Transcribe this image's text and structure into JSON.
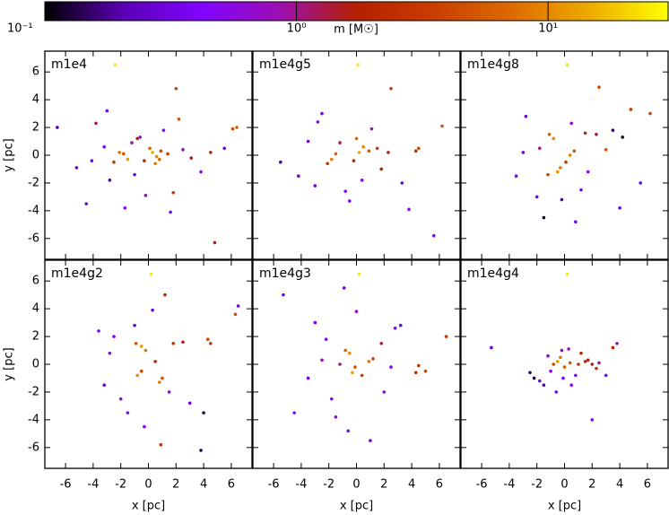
{
  "colorbar": {
    "label": "m [M☉]",
    "log_scale": true,
    "clim": [
      0.1,
      30
    ],
    "ticks": [
      {
        "value": 0.1,
        "label": "10⁻¹"
      },
      {
        "value": 1,
        "label": "10⁰"
      },
      {
        "value": 10,
        "label": "10¹"
      }
    ],
    "colormap": [
      "#000000",
      "#5a00b4",
      "#8004ff",
      "#9c0eb4",
      "#b42000",
      "#c93e00",
      "#dd6b00",
      "#eeab00",
      "#ffff00"
    ]
  },
  "chart_data": [
    {
      "type": "scatter",
      "title": "m1e4",
      "y_label": "y [pc]",
      "xlim": [
        -7.5,
        7.5
      ],
      "ylim": [
        -7.5,
        7.5
      ],
      "xticks": [
        -6,
        -4,
        -2,
        0,
        2,
        4,
        6
      ],
      "yticks": [
        -6,
        -4,
        -2,
        0,
        2,
        4,
        6
      ],
      "x": [
        -2.4,
        -2.1,
        -1.5,
        -2.5,
        -1.8,
        0.3,
        0.6,
        0.1,
        0.9,
        -0.3,
        1.4,
        2.5,
        3.1,
        -3.2,
        -4.1,
        -5.2,
        -3.8,
        4.5,
        6.4,
        6.1,
        -1.0,
        -0.6,
        1.8,
        2.2,
        -2.8,
        0.5,
        -1.2,
        3.8,
        -0.2,
        1.1,
        -4.5,
        2.0,
        0.8,
        -1.7,
        5.5,
        -6.6,
        -3.0,
        1.6,
        -0.8,
        4.8
      ],
      "values": [
        6.5,
        0.2,
        -0.3,
        -0.5,
        0.1,
        0.2,
        -0.1,
        0.5,
        0.3,
        -0.4,
        0.1,
        0.4,
        -0.2,
        0.6,
        -0.4,
        -0.9,
        2.3,
        0.2,
        2.0,
        1.9,
        -1.4,
        1.3,
        -2.7,
        2.6,
        -1.8,
        -0.6,
        0.9,
        -1.2,
        -2.9,
        1.8,
        -3.5,
        4.8,
        -0.3,
        -3.8,
        0.5,
        2.0,
        3.2,
        -4.1,
        1.2,
        -6.3
      ],
      "m": [
        25,
        8,
        12,
        3,
        5,
        15,
        10,
        6,
        4,
        2,
        3,
        0.8,
        1.5,
        0.4,
        0.3,
        0.25,
        1.2,
        2,
        6,
        4,
        0.3,
        0.6,
        3,
        5,
        0.2,
        9,
        1,
        0.5,
        0.7,
        0.4,
        0.3,
        4,
        7,
        0.5,
        0.3,
        0.2,
        0.3,
        0.4,
        2,
        1.5
      ]
    },
    {
      "type": "scatter",
      "title": "m1e4g5",
      "xlim": [
        -7.5,
        7.5
      ],
      "ylim": [
        -7.5,
        7.5
      ],
      "xticks": [
        -6,
        -4,
        -2,
        0,
        2,
        4,
        6
      ],
      "yticks": [
        -6,
        -4,
        -2,
        0,
        2,
        4,
        6
      ],
      "x": [
        0.1,
        -1.8,
        -1.5,
        -2.1,
        0.2,
        0.5,
        -0.2,
        0.9,
        1.5,
        2.3,
        4.5,
        4.3,
        6.2,
        -3.5,
        -4.2,
        -2.8,
        -0.8,
        1.1,
        0.4,
        -1.2,
        3.3,
        -5.5,
        2.5,
        -0.5,
        5.6,
        1.8,
        -2.5,
        0.0,
        3.8,
        -3.0
      ],
      "values": [
        6.5,
        -0.3,
        0.1,
        -0.6,
        0.2,
        0.6,
        -0.4,
        0.3,
        0.5,
        0.2,
        0.5,
        0.3,
        2.1,
        1.0,
        -1.5,
        2.4,
        -2.6,
        1.9,
        -1.8,
        0.9,
        -2.0,
        -0.5,
        4.8,
        -3.3,
        -5.8,
        -1.0,
        3.0,
        1.2,
        -3.9,
        -2.2
      ],
      "m": [
        25,
        9,
        6,
        3,
        14,
        10,
        2,
        5,
        3,
        1.5,
        4,
        2,
        5,
        0.3,
        0.3,
        0.6,
        0.4,
        0.8,
        0.5,
        1.2,
        0.3,
        0.2,
        3,
        0.4,
        0.6,
        2,
        0.3,
        7,
        0.5,
        0.3
      ]
    },
    {
      "type": "scatter",
      "title": "m1e4g8",
      "xlim": [
        -7.5,
        7.5
      ],
      "ylim": [
        -7.5,
        7.5
      ],
      "xticks": [
        -6,
        -4,
        -2,
        0,
        2,
        4,
        6
      ],
      "yticks": [
        -6,
        -4,
        -2,
        0,
        2,
        4,
        6
      ],
      "x": [
        0.2,
        -0.8,
        -1.1,
        -0.5,
        -0.3,
        -1.2,
        0.4,
        0.7,
        0.1,
        1.5,
        2.3,
        3.5,
        4.2,
        4.8,
        6.2,
        -2.8,
        -3.5,
        -2.0,
        1.2,
        0.8,
        -1.8,
        2.5,
        5.5,
        3.0,
        -0.2,
        1.7,
        -3.0,
        0.5,
        -1.5,
        4.0
      ],
      "values": [
        6.5,
        1.2,
        1.5,
        -1.2,
        -0.9,
        -1.4,
        0.0,
        0.3,
        -0.5,
        1.6,
        1.5,
        1.8,
        1.3,
        3.3,
        3.0,
        2.8,
        -1.5,
        -3.0,
        -2.5,
        -4.8,
        0.5,
        4.9,
        -2.0,
        0.4,
        -3.2,
        -1.2,
        0.2,
        2.3,
        -4.5,
        -3.8
      ],
      "m": [
        25,
        10,
        6,
        12,
        8,
        4,
        9,
        5,
        3,
        2,
        1.5,
        0.15,
        0.12,
        3,
        4,
        0.3,
        0.4,
        0.3,
        0.5,
        0.3,
        1,
        4,
        0.3,
        5,
        0.2,
        0.4,
        0.3,
        0.6,
        0.12,
        0.3
      ]
    },
    {
      "type": "scatter",
      "title": "m1e4g2",
      "x_label": "x [pc]",
      "y_label": "y [pc]",
      "xlim": [
        -7.5,
        7.5
      ],
      "ylim": [
        -7.5,
        7.5
      ],
      "xticks": [
        -6,
        -4,
        -2,
        0,
        2,
        4,
        6
      ],
      "yticks": [
        -6,
        -4,
        -2,
        0,
        2,
        4,
        6
      ],
      "x": [
        0.2,
        -0.5,
        -0.2,
        -0.9,
        -0.8,
        -0.5,
        0.8,
        1.0,
        0.5,
        1.8,
        2.5,
        4.3,
        4.5,
        6.3,
        6.5,
        -2.5,
        -3.2,
        -1.5,
        -2.0,
        0.3,
        -3.6,
        1.5,
        3.0,
        -0.3,
        4.0,
        1.2,
        -2.8,
        0.9,
        -1.0,
        3.8
      ],
      "values": [
        6.5,
        1.3,
        1.0,
        1.5,
        -0.8,
        -0.5,
        -1.3,
        -1.0,
        0.2,
        1.5,
        1.6,
        1.8,
        1.5,
        3.6,
        4.2,
        2.0,
        -1.5,
        -3.5,
        -2.5,
        3.9,
        2.4,
        -2.0,
        -2.8,
        -4.5,
        -3.5,
        5.0,
        0.8,
        -5.8,
        2.8,
        -6.2
      ],
      "m": [
        25,
        12,
        8,
        5,
        10,
        4,
        9,
        5,
        2,
        3,
        1.5,
        4,
        3,
        5,
        0.3,
        0.4,
        0.3,
        0.5,
        0.6,
        0.3,
        0.4,
        0.5,
        0.3,
        0.4,
        0.12,
        2,
        0.6,
        3,
        0.3,
        0.15
      ]
    },
    {
      "type": "scatter",
      "title": "m1e4g3",
      "x_label": "x [pc]",
      "xlim": [
        -7.5,
        7.5
      ],
      "ylim": [
        -7.5,
        7.5
      ],
      "xticks": [
        -6,
        -4,
        -2,
        0,
        2,
        4,
        6
      ],
      "yticks": [
        -6,
        -4,
        -2,
        0,
        2,
        4,
        6
      ],
      "x": [
        0.2,
        -0.5,
        -0.8,
        -0.3,
        -0.1,
        0.9,
        1.2,
        0.4,
        -1.2,
        1.8,
        2.5,
        4.5,
        5.0,
        6.5,
        -2.2,
        -3.5,
        -4.5,
        -5.3,
        -1.8,
        0.0,
        2.0,
        3.2,
        -2.5,
        -0.6,
        1.0,
        4.3,
        -3.0,
        2.8,
        -1.5,
        -0.9
      ],
      "values": [
        6.5,
        0.8,
        1.0,
        -0.6,
        -0.2,
        0.2,
        0.4,
        -0.8,
        0.0,
        1.5,
        -0.2,
        -0.1,
        -0.5,
        2.0,
        1.8,
        -1.0,
        -3.5,
        5.0,
        -2.5,
        3.8,
        -2.0,
        2.8,
        0.3,
        -4.8,
        -5.5,
        -0.6,
        3.0,
        2.6,
        -3.8,
        5.5
      ],
      "m": [
        25,
        10,
        6,
        12,
        5,
        8,
        4,
        3,
        1,
        1.5,
        0.5,
        3,
        4,
        3,
        0.4,
        0.3,
        0.4,
        0.3,
        0.5,
        0.6,
        0.5,
        0.3,
        0.8,
        0.4,
        0.3,
        2,
        0.3,
        0.4,
        0.5,
        0.3
      ]
    },
    {
      "type": "scatter",
      "title": "m1e4g4",
      "x_label": "x [pc]",
      "xlim": [
        -7.5,
        7.5
      ],
      "ylim": [
        -7.5,
        7.5
      ],
      "xticks": [
        -6,
        -4,
        -2,
        0,
        2,
        4,
        6
      ],
      "yticks": [
        -6,
        -4,
        -2,
        0,
        2,
        4,
        6
      ],
      "x": [
        0.2,
        -0.5,
        -0.3,
        0.0,
        -0.8,
        0.4,
        1.0,
        1.5,
        2.0,
        2.5,
        3.5,
        3.8,
        -1.8,
        -2.2,
        -1.5,
        -0.2,
        0.8,
        -1.0,
        1.2,
        -5.3,
        2.0,
        3.0,
        -2.5,
        0.5,
        -0.6,
        2.3,
        -1.2,
        0.3,
        1.7,
        -0.1
      ],
      "values": [
        6.5,
        0.2,
        0.5,
        -0.2,
        0.0,
        0.1,
        0.0,
        0.2,
        0.0,
        0.1,
        1.2,
        1.5,
        -1.2,
        -1.0,
        -1.5,
        1.0,
        -0.8,
        -0.5,
        0.8,
        1.2,
        -4.0,
        -0.8,
        -0.6,
        -1.5,
        -2.0,
        -0.3,
        0.6,
        1.1,
        0.3,
        -1.0
      ],
      "m": [
        25,
        12,
        8,
        6,
        4,
        5,
        3,
        2,
        1.5,
        1,
        2,
        0.8,
        0.3,
        0.12,
        0.2,
        0.5,
        0.4,
        0.6,
        2,
        0.3,
        0.4,
        0.3,
        0.15,
        0.5,
        0.4,
        3,
        0.6,
        0.8,
        1.5,
        0.4
      ]
    }
  ]
}
